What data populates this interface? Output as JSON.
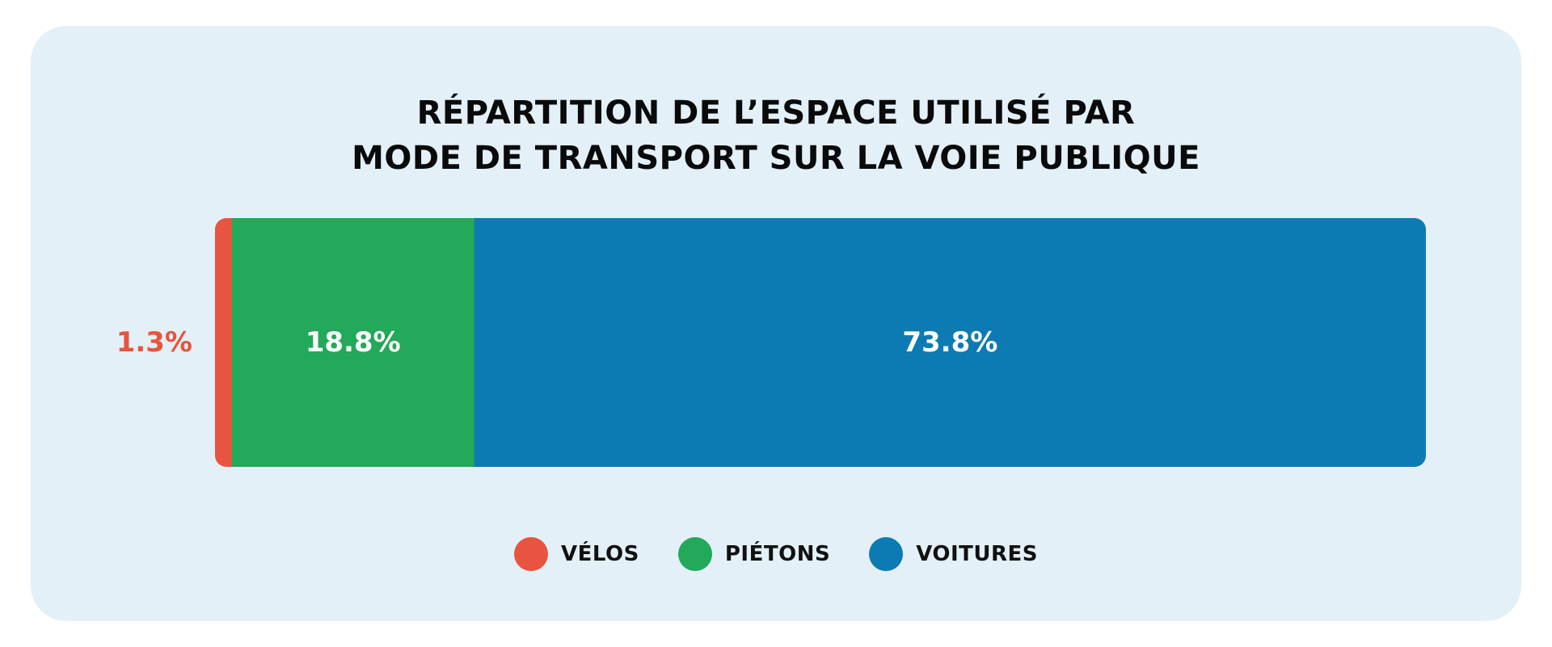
{
  "chart_data": {
    "type": "bar",
    "orientation": "horizontal-stacked",
    "title_lines": [
      "RÉPARTITION DE L’ESPACE UTILISÉ PAR",
      "MODE DE TRANSPORT SUR LA VOIE PUBLIQUE"
    ],
    "series": [
      {
        "name": "VÉLOS",
        "value": 1.3,
        "label": "1.3%",
        "color": "#e8543f",
        "label_outside": true
      },
      {
        "name": "PIÉTONS",
        "value": 18.8,
        "label": "18.8%",
        "color": "#22a95a",
        "label_outside": false
      },
      {
        "name": "VOITURES",
        "value": 73.8,
        "label": "73.8%",
        "color": "#0c7bb3",
        "label_outside": false
      }
    ],
    "legend_position": "bottom-center",
    "grid": false
  },
  "colors": {
    "background": "#e3f0f7",
    "label_inside": "#ffffff"
  }
}
